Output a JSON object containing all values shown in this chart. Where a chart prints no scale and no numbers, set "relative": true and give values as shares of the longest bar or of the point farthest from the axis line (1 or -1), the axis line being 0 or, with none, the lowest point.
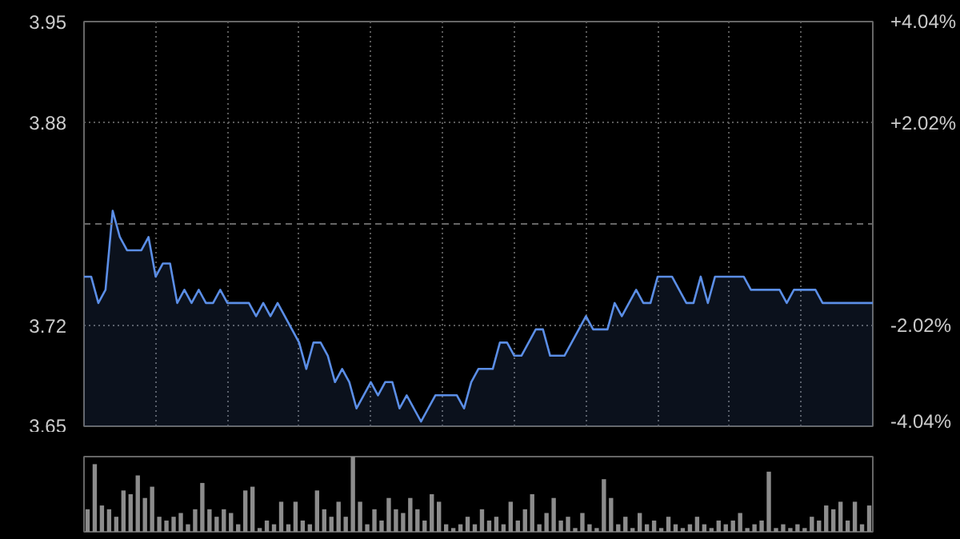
{
  "chart_data": [
    {
      "type": "area",
      "categories": [
        null,
        null,
        null,
        null,
        null,
        null,
        null,
        null,
        null,
        null,
        null,
        null,
        null,
        null,
        null,
        null,
        null,
        null,
        null,
        null,
        null,
        null,
        null,
        null,
        null,
        null,
        null,
        null,
        null,
        null,
        null,
        null,
        null,
        null,
        null,
        null,
        null,
        null,
        null,
        null,
        null,
        null,
        null,
        null,
        null,
        null,
        null,
        null,
        null,
        null,
        null,
        null,
        null,
        null,
        null,
        null,
        null,
        null,
        null,
        null,
        null,
        null,
        null,
        null,
        null,
        null,
        null,
        null,
        null,
        null,
        null,
        null,
        null,
        null,
        null,
        null,
        null,
        null,
        null,
        null,
        null,
        null,
        null,
        null,
        null,
        null,
        null,
        null,
        null,
        null,
        null,
        null,
        null,
        null,
        null,
        null,
        null,
        null,
        null,
        null,
        null,
        null,
        null,
        null,
        null,
        null,
        null,
        null,
        null,
        null,
        null
      ],
      "series": [
        {
          "color": "#5b8ee6",
          "values": [
            3.76,
            3.76,
            3.74,
            3.75,
            3.81,
            3.79,
            3.78,
            3.78,
            3.78,
            3.79,
            3.76,
            3.77,
            3.77,
            3.74,
            3.75,
            3.74,
            3.75,
            3.74,
            3.74,
            3.75,
            3.74,
            3.74,
            3.74,
            3.74,
            3.73,
            3.74,
            3.73,
            3.74,
            3.73,
            3.72,
            3.71,
            3.69,
            3.71,
            3.71,
            3.7,
            3.68,
            3.69,
            3.68,
            3.66,
            3.67,
            3.68,
            3.67,
            3.68,
            3.68,
            3.66,
            3.67,
            3.66,
            3.65,
            3.66,
            3.67,
            3.67,
            3.67,
            3.67,
            3.66,
            3.68,
            3.69,
            3.69,
            3.69,
            3.71,
            3.71,
            3.7,
            3.7,
            3.71,
            3.72,
            3.72,
            3.7,
            3.7,
            3.7,
            3.71,
            3.72,
            3.73,
            3.72,
            3.72,
            3.72,
            3.74,
            3.73,
            3.74,
            3.75,
            3.74,
            3.74,
            3.76,
            3.76,
            3.76,
            3.75,
            3.74,
            3.74,
            3.76,
            3.74,
            3.76,
            3.76,
            3.76,
            3.76,
            3.76,
            3.75,
            3.75,
            3.75,
            3.75,
            3.75,
            3.74,
            3.75,
            3.75,
            3.75,
            3.75,
            3.74,
            3.74,
            3.74,
            3.74,
            3.74,
            3.74,
            3.74,
            3.74
          ]
        }
      ],
      "ylim": [
        3.6465,
        3.9535
      ],
      "yticks": [
        {
          "value": 3.9535,
          "label": "3.95"
        },
        {
          "value": 3.8768,
          "label": "3.88"
        },
        {
          "value": 3.7232,
          "label": "3.72"
        },
        {
          "value": 3.6465,
          "label": "3.65"
        }
      ],
      "y2lim": [
        -4.04,
        4.04
      ],
      "y2ticks": [
        {
          "value": 4.04,
          "label": "+4.04%"
        },
        {
          "value": 2.02,
          "label": "+2.02%"
        },
        {
          "value": -2.02,
          "label": "-2.02%"
        },
        {
          "value": -4.04,
          "label": "-4.04%"
        }
      ],
      "ref_lines": [
        {
          "axis": "y",
          "value": 3.8,
          "line_style": "dashed",
          "color": "#666666"
        }
      ],
      "grid": true
    },
    {
      "type": "bar",
      "relative": true,
      "color": "#8c8c8c",
      "categories": [
        null,
        null,
        null,
        null,
        null,
        null,
        null,
        null,
        null,
        null,
        null,
        null,
        null,
        null,
        null,
        null,
        null,
        null,
        null,
        null,
        null,
        null,
        null,
        null,
        null,
        null,
        null,
        null,
        null,
        null,
        null,
        null,
        null,
        null,
        null,
        null,
        null,
        null,
        null,
        null,
        null,
        null,
        null,
        null,
        null,
        null,
        null,
        null,
        null,
        null,
        null,
        null,
        null,
        null,
        null,
        null,
        null,
        null,
        null,
        null,
        null,
        null,
        null,
        null,
        null,
        null,
        null,
        null,
        null,
        null,
        null,
        null,
        null,
        null,
        null,
        null,
        null,
        null,
        null,
        null,
        null,
        null,
        null,
        null,
        null,
        null,
        null,
        null,
        null,
        null,
        null,
        null,
        null,
        null,
        null,
        null,
        null,
        null,
        null,
        null,
        null,
        null,
        null,
        null,
        null,
        null,
        null,
        null,
        null,
        null
      ],
      "values": [
        0.3,
        0.9,
        0.35,
        0.3,
        0.2,
        0.55,
        0.5,
        0.75,
        0.45,
        0.6,
        0.2,
        0.15,
        0.2,
        0.25,
        0.1,
        0.3,
        0.65,
        0.3,
        0.2,
        0.3,
        0.25,
        0.1,
        0.55,
        0.6,
        0.05,
        0.15,
        0.1,
        0.4,
        0.1,
        0.4,
        0.15,
        0.1,
        0.55,
        0.3,
        0.2,
        0.4,
        0.2,
        1.0,
        0.4,
        0.1,
        0.3,
        0.15,
        0.45,
        0.3,
        0.25,
        0.45,
        0.3,
        0.15,
        0.5,
        0.4,
        0.1,
        0.05,
        0.1,
        0.2,
        0.1,
        0.3,
        0.15,
        0.2,
        0.1,
        0.4,
        0.15,
        0.3,
        0.5,
        0.1,
        0.25,
        0.45,
        0.15,
        0.2,
        0.05,
        0.25,
        0.1,
        0.05,
        0.7,
        0.45,
        0.1,
        0.2,
        0.05,
        0.25,
        0.1,
        0.15,
        0.05,
        0.2,
        0.1,
        0.05,
        0.1,
        0.2,
        0.1,
        0.05,
        0.15,
        0.1,
        0.15,
        0.25,
        0.05,
        0.1,
        0.15,
        0.8,
        0.05,
        0.1,
        0.05,
        0.1,
        0.05,
        0.2,
        0.15,
        0.35,
        0.3,
        0.4,
        0.15,
        0.4,
        0.1,
        0.35
      ]
    }
  ]
}
